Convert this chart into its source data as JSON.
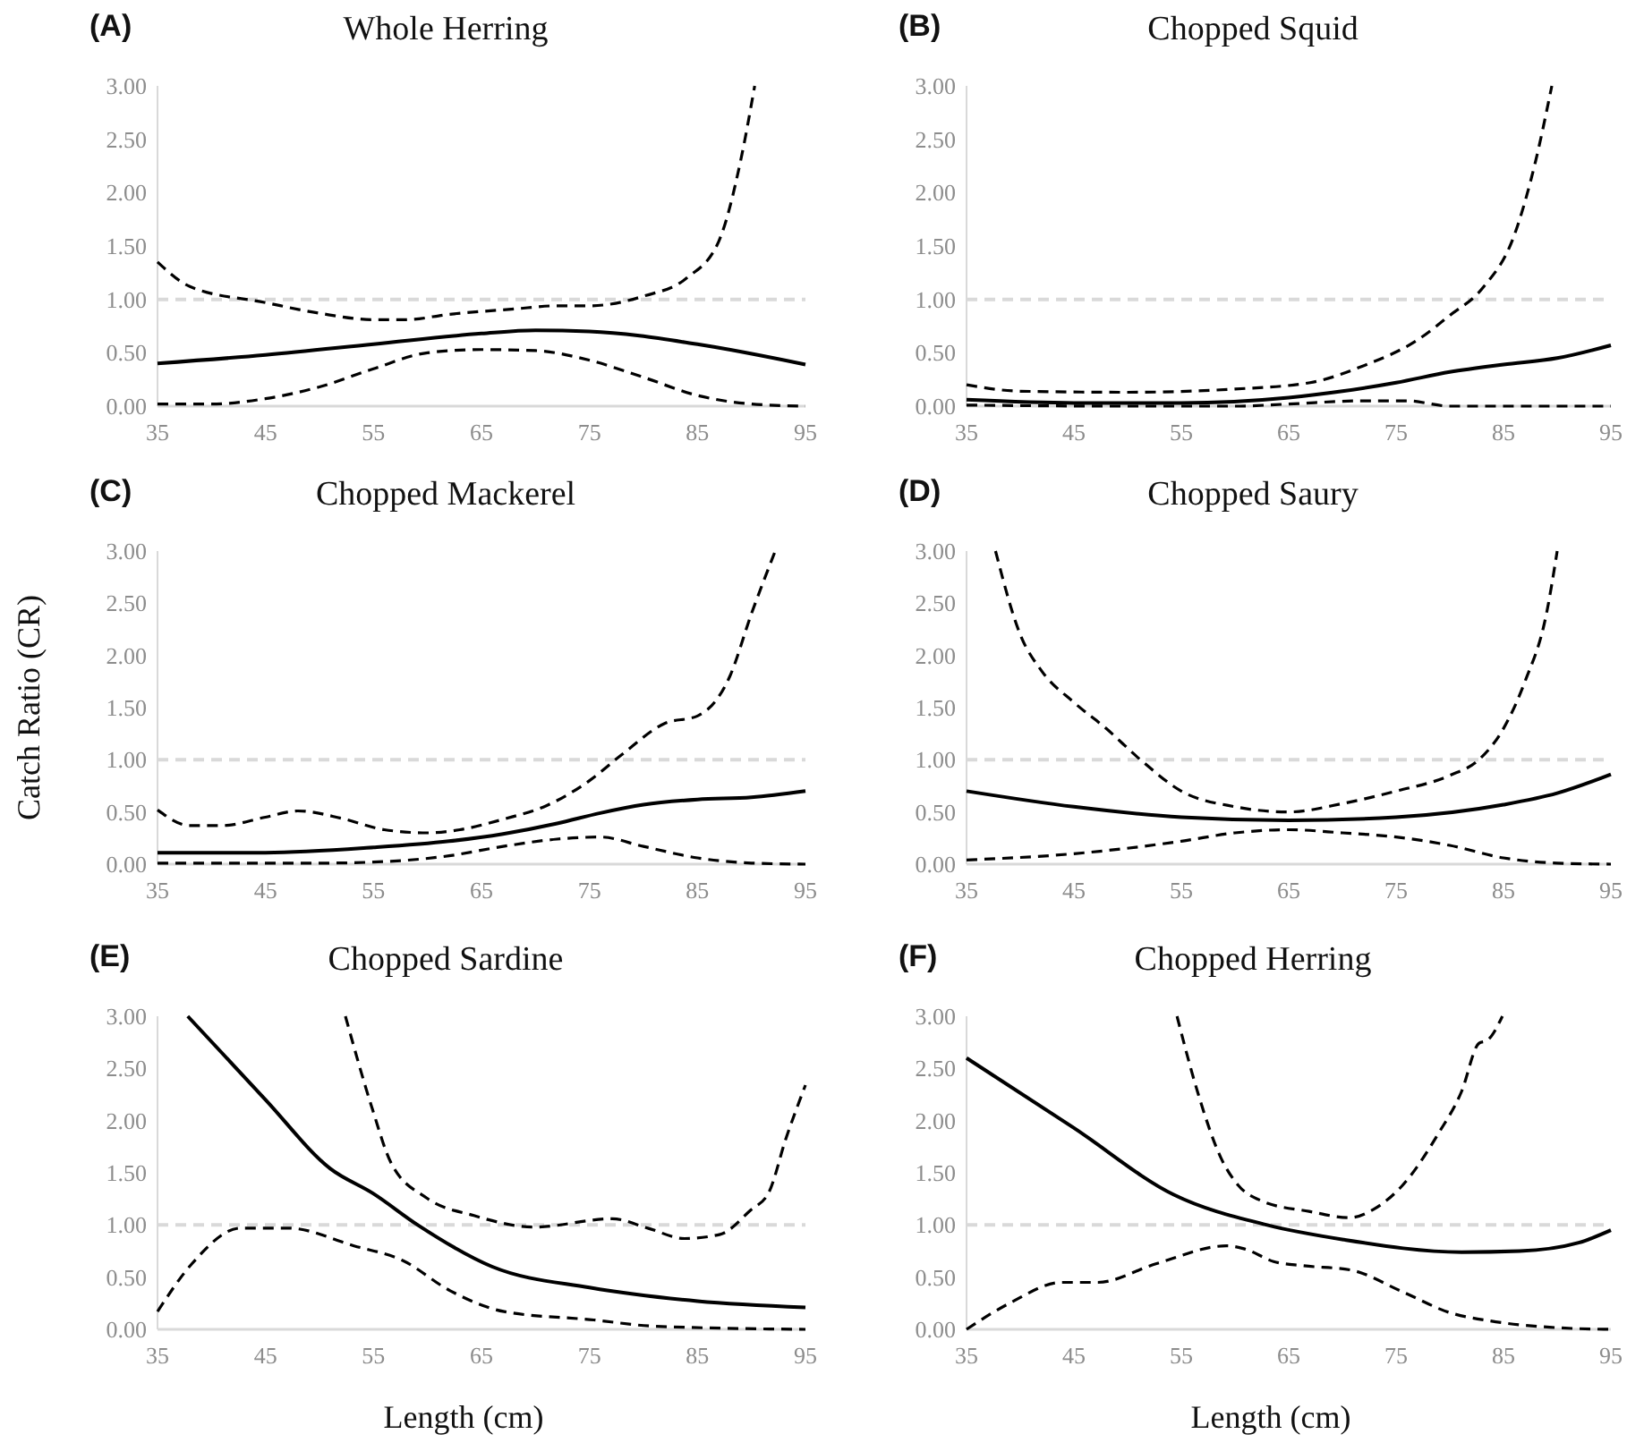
{
  "chart_data": [
    {
      "type": "line",
      "title": "Whole Herring",
      "annotations": [
        "(A)"
      ],
      "xlim": [
        35,
        95
      ],
      "xticks": [
        35,
        45,
        55,
        65,
        75,
        85,
        95
      ],
      "ylim": [
        0,
        3
      ],
      "yticks": [
        {
          "value": 0,
          "label": "0.00"
        },
        {
          "value": 0.5,
          "label": "0.50"
        },
        {
          "value": 1,
          "label": "1.00"
        },
        {
          "value": 1.5,
          "label": "1.50"
        },
        {
          "value": 2,
          "label": "2.00"
        },
        {
          "value": 2.5,
          "label": "2.50"
        },
        {
          "value": 3,
          "label": "3.00"
        }
      ],
      "ref_lines": [
        {
          "axis": "y",
          "value": 1,
          "label": null,
          "color": "#d9d9d9",
          "line_style": "dashed"
        }
      ],
      "series": [
        {
          "color": "#000000",
          "line_style": "solid",
          "x": [
            35,
            45,
            55,
            65,
            70,
            75,
            85,
            95
          ],
          "values": [
            0.4,
            0.48,
            0.58,
            0.68,
            0.71,
            0.7,
            0.58,
            0.39
          ]
        },
        {
          "color": "#000000",
          "line_style": "dashed",
          "x": [
            35,
            38,
            45,
            50,
            55,
            58,
            62,
            68,
            72,
            75,
            80,
            84,
            87,
            89,
            90.3
          ],
          "values": [
            1.35,
            1.12,
            0.97,
            0.87,
            0.81,
            0.81,
            0.86,
            0.91,
            0.94,
            0.94,
            1.03,
            1.2,
            1.55,
            2.3,
            3.0
          ]
        },
        {
          "color": "#000000",
          "line_style": "dashed",
          "x": [
            35,
            40,
            45,
            50,
            55,
            60,
            65,
            70,
            75,
            80,
            85,
            90,
            95
          ],
          "values": [
            0.02,
            0.02,
            0.07,
            0.18,
            0.35,
            0.5,
            0.53,
            0.52,
            0.43,
            0.27,
            0.1,
            0.02,
            0.0
          ]
        }
      ]
    },
    {
      "type": "line",
      "title": "Chopped Squid",
      "annotations": [
        "(B)"
      ],
      "xlim": [
        35,
        95
      ],
      "xticks": [
        35,
        45,
        55,
        65,
        75,
        85,
        95
      ],
      "ylim": [
        0,
        3
      ],
      "yticks": [
        {
          "value": 0,
          "label": "0.00"
        },
        {
          "value": 0.5,
          "label": "0.50"
        },
        {
          "value": 1,
          "label": "1.00"
        },
        {
          "value": 1.5,
          "label": "1.50"
        },
        {
          "value": 2,
          "label": "2.00"
        },
        {
          "value": 2.5,
          "label": "2.50"
        },
        {
          "value": 3,
          "label": "3.00"
        }
      ],
      "ref_lines": [
        {
          "axis": "y",
          "value": 1,
          "label": null,
          "color": "#d9d9d9",
          "line_style": "dashed"
        }
      ],
      "series": [
        {
          "color": "#000000",
          "line_style": "solid",
          "x": [
            35,
            45,
            55,
            65,
            70,
            75,
            80,
            85,
            90,
            95
          ],
          "values": [
            0.06,
            0.03,
            0.03,
            0.08,
            0.14,
            0.22,
            0.32,
            0.39,
            0.45,
            0.57
          ]
        },
        {
          "color": "#000000",
          "line_style": "dashed",
          "x": [
            35,
            40,
            50,
            60,
            67,
            72,
            77,
            80,
            83,
            86,
            88,
            89.5
          ],
          "values": [
            0.2,
            0.14,
            0.13,
            0.16,
            0.22,
            0.38,
            0.62,
            0.85,
            1.1,
            1.6,
            2.3,
            3.0
          ]
        },
        {
          "color": "#000000",
          "line_style": "dashed",
          "x": [
            35,
            50,
            60,
            65,
            72,
            76,
            80,
            95
          ],
          "values": [
            0.01,
            0.0,
            0.0,
            0.02,
            0.05,
            0.05,
            0.0,
            0.0
          ]
        }
      ]
    },
    {
      "type": "line",
      "title": "Chopped Mackerel",
      "annotations": [
        "(C)"
      ],
      "ylabel": "Catch Ratio (CR)",
      "xlim": [
        35,
        95
      ],
      "xticks": [
        35,
        45,
        55,
        65,
        75,
        85,
        95
      ],
      "ylim": [
        0,
        3
      ],
      "yticks": [
        {
          "value": 0,
          "label": "0.00"
        },
        {
          "value": 0.5,
          "label": "0.50"
        },
        {
          "value": 1,
          "label": "1.00"
        },
        {
          "value": 1.5,
          "label": "1.50"
        },
        {
          "value": 2,
          "label": "2.00"
        },
        {
          "value": 2.5,
          "label": "2.50"
        },
        {
          "value": 3,
          "label": "3.00"
        }
      ],
      "ref_lines": [
        {
          "axis": "y",
          "value": 1,
          "label": null,
          "color": "#d9d9d9",
          "line_style": "dashed"
        }
      ],
      "series": [
        {
          "color": "#000000",
          "line_style": "solid",
          "x": [
            35,
            45,
            55,
            62,
            67,
            72,
            76,
            80,
            85,
            90,
            95
          ],
          "values": [
            0.11,
            0.11,
            0.16,
            0.22,
            0.29,
            0.39,
            0.49,
            0.57,
            0.62,
            0.64,
            0.7
          ]
        },
        {
          "color": "#000000",
          "line_style": "dashed",
          "x": [
            35,
            38,
            41,
            45,
            48,
            52,
            56,
            60,
            63,
            67,
            71,
            75,
            78,
            82,
            85,
            88,
            90,
            92.2
          ],
          "values": [
            0.52,
            0.37,
            0.37,
            0.45,
            0.51,
            0.44,
            0.33,
            0.3,
            0.33,
            0.43,
            0.56,
            0.8,
            1.05,
            1.35,
            1.42,
            1.8,
            2.4,
            3.0
          ]
        },
        {
          "color": "#000000",
          "line_style": "dashed",
          "x": [
            35,
            50,
            55,
            62,
            67,
            72,
            76,
            80,
            85,
            90,
            95
          ],
          "values": [
            0.01,
            0.01,
            0.02,
            0.08,
            0.17,
            0.24,
            0.26,
            0.17,
            0.06,
            0.01,
            0.0
          ]
        }
      ]
    },
    {
      "type": "line",
      "title": "Chopped Saury",
      "annotations": [
        "(D)"
      ],
      "xlim": [
        35,
        95
      ],
      "xticks": [
        35,
        45,
        55,
        65,
        75,
        85,
        95
      ],
      "ylim": [
        0,
        3
      ],
      "yticks": [
        {
          "value": 0,
          "label": "0.00"
        },
        {
          "value": 0.5,
          "label": "0.50"
        },
        {
          "value": 1,
          "label": "1.00"
        },
        {
          "value": 1.5,
          "label": "1.50"
        },
        {
          "value": 2,
          "label": "2.00"
        },
        {
          "value": 2.5,
          "label": "2.50"
        },
        {
          "value": 3,
          "label": "3.00"
        }
      ],
      "ref_lines": [
        {
          "axis": "y",
          "value": 1,
          "label": null,
          "color": "#d9d9d9",
          "line_style": "dashed"
        }
      ],
      "series": [
        {
          "color": "#000000",
          "line_style": "solid",
          "x": [
            35,
            45,
            55,
            65,
            75,
            85,
            90,
            95
          ],
          "values": [
            0.7,
            0.55,
            0.45,
            0.42,
            0.45,
            0.57,
            0.68,
            0.86
          ]
        },
        {
          "color": "#000000",
          "line_style": "dashed",
          "x": [
            37.7,
            40,
            42,
            45,
            48,
            51.2,
            55,
            60,
            65,
            70,
            75,
            80,
            82.7,
            85,
            87,
            89,
            90
          ],
          "values": [
            3.0,
            2.2,
            1.85,
            1.55,
            1.3,
            1.0,
            0.7,
            0.55,
            0.5,
            0.58,
            0.7,
            0.85,
            1.0,
            1.3,
            1.75,
            2.4,
            3.0
          ]
        },
        {
          "color": "#000000",
          "line_style": "dashed",
          "x": [
            35,
            45,
            55,
            60,
            65,
            70,
            75,
            80,
            85,
            90,
            95
          ],
          "values": [
            0.04,
            0.1,
            0.22,
            0.3,
            0.33,
            0.3,
            0.26,
            0.18,
            0.06,
            0.01,
            0.0
          ]
        }
      ]
    },
    {
      "type": "line",
      "title": "Chopped Sardine",
      "annotations": [
        "(E)"
      ],
      "xlabel": "Length (cm)",
      "xlim": [
        35,
        95
      ],
      "xticks": [
        35,
        45,
        55,
        65,
        75,
        85,
        95
      ],
      "ylim": [
        0,
        3
      ],
      "yticks": [
        {
          "value": 0,
          "label": "0.00"
        },
        {
          "value": 0.5,
          "label": "0.50"
        },
        {
          "value": 1,
          "label": "1.00"
        },
        {
          "value": 1.5,
          "label": "1.50"
        },
        {
          "value": 2,
          "label": "2.00"
        },
        {
          "value": 2.5,
          "label": "2.50"
        },
        {
          "value": 3,
          "label": "3.00"
        }
      ],
      "ref_lines": [
        {
          "axis": "y",
          "value": 1,
          "label": null,
          "color": "#d9d9d9",
          "line_style": "dashed"
        }
      ],
      "series": [
        {
          "color": "#000000",
          "line_style": "solid",
          "x": [
            37.8,
            45,
            51,
            55,
            59.1,
            66,
            75,
            85,
            95
          ],
          "values": [
            3.0,
            2.2,
            1.54,
            1.3,
            1.0,
            0.6,
            0.4,
            0.27,
            0.21
          ]
        },
        {
          "color": "#000000",
          "line_style": "dashed",
          "x": [
            52.4,
            54.9,
            56.6,
            59.9,
            64.3,
            69.9,
            77.1,
            80.4,
            83.8,
            87.1,
            89.9,
            91.6,
            93.2,
            95
          ],
          "values": [
            3.0,
            2.11,
            1.6,
            1.26,
            1.09,
            0.98,
            1.06,
            0.97,
            0.87,
            0.91,
            1.14,
            1.31,
            1.83,
            2.34
          ]
        },
        {
          "color": "#000000",
          "line_style": "dashed",
          "x": [
            35,
            38.2,
            42.7,
            47.1,
            53.2,
            57.7,
            62.1,
            67.1,
            75.4,
            81,
            95
          ],
          "values": [
            0.17,
            0.63,
            0.97,
            0.97,
            0.8,
            0.66,
            0.37,
            0.17,
            0.09,
            0.03,
            0.0
          ]
        }
      ]
    },
    {
      "type": "line",
      "title": "Chopped Herring",
      "annotations": [
        "(F)"
      ],
      "xlabel": "Length (cm)",
      "xlim": [
        35,
        95
      ],
      "xticks": [
        35,
        45,
        55,
        65,
        75,
        85,
        95
      ],
      "ylim": [
        0,
        3
      ],
      "yticks": [
        {
          "value": 0,
          "label": "0.00"
        },
        {
          "value": 0.5,
          "label": "0.50"
        },
        {
          "value": 1,
          "label": "1.00"
        },
        {
          "value": 1.5,
          "label": "1.50"
        },
        {
          "value": 2,
          "label": "2.00"
        },
        {
          "value": 2.5,
          "label": "2.50"
        },
        {
          "value": 3,
          "label": "3.00"
        }
      ],
      "ref_lines": [
        {
          "axis": "y",
          "value": 1,
          "label": null,
          "color": "#d9d9d9",
          "line_style": "dashed"
        }
      ],
      "series": [
        {
          "color": "#000000",
          "line_style": "solid",
          "x": [
            35,
            45,
            54.3,
            63,
            70.1,
            81.1,
            86.5,
            92,
            95
          ],
          "values": [
            2.6,
            1.93,
            1.29,
            1.0,
            0.86,
            0.74,
            0.75,
            0.83,
            0.95
          ]
        },
        {
          "color": "#000000",
          "line_style": "dashed",
          "x": [
            54.6,
            56.5,
            58.7,
            60.3,
            62.5,
            66.9,
            70.7,
            72.9,
            75.6,
            78.9,
            81.1,
            82.7,
            83.5,
            84.9
          ],
          "values": [
            3.0,
            2.28,
            1.64,
            1.38,
            1.23,
            1.13,
            1.07,
            1.15,
            1.38,
            1.87,
            2.28,
            2.74,
            2.77,
            3.0
          ]
        },
        {
          "color": "#000000",
          "line_style": "dashed",
          "x": [
            35,
            39,
            43.9,
            47.2,
            52.7,
            59.2,
            60.9,
            63.6,
            66.3,
            70.7,
            75.6,
            80,
            83.8,
            89.3,
            95
          ],
          "values": [
            0.0,
            0.25,
            0.45,
            0.45,
            0.63,
            0.8,
            0.77,
            0.65,
            0.61,
            0.57,
            0.36,
            0.16,
            0.08,
            0.02,
            0.0
          ]
        }
      ]
    }
  ]
}
